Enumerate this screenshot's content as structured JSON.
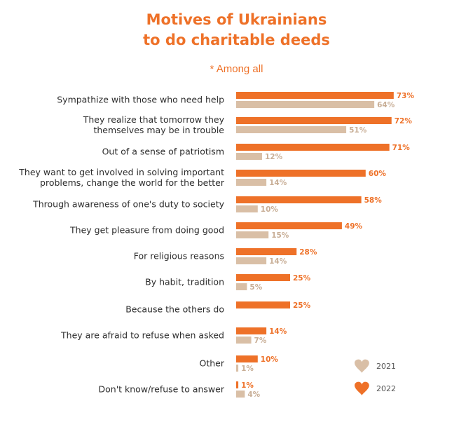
{
  "colors": {
    "y2022": "#ee7128",
    "y2021": "#d9bfa6",
    "label2021": "#c8ae96",
    "text": "#2d2d2d"
  },
  "legend": [
    {
      "label": "2021",
      "icon": "heart-icon",
      "color": "#d9bfa6"
    },
    {
      "label": "2022",
      "icon": "heart-icon",
      "color": "#ee7128"
    }
  ],
  "chart_data": {
    "type": "bar",
    "orientation": "horizontal",
    "title": [
      "Motives of Ukrainians",
      "to do charitable deeds"
    ],
    "subtitle": "* Among all",
    "unit": "%",
    "xlim": [
      0,
      100
    ],
    "grid": false,
    "legend_position": "bottom-right",
    "categories": [
      [
        "Sympathize with those who need help"
      ],
      [
        "They realize that tomorrow they",
        "themselves may be in trouble"
      ],
      [
        "Out of a sense of patriotism"
      ],
      [
        "They want to get involved in solving important",
        "problems, change the world for the better"
      ],
      [
        "Through awareness of one's duty to society"
      ],
      [
        "They get pleasure from doing good"
      ],
      [
        "For religious reasons"
      ],
      [
        "By habit, tradition"
      ],
      [
        "Because the others do"
      ],
      [
        "They are afraid to refuse when asked"
      ],
      [
        "Other"
      ],
      [
        "Don't know/refuse to answer"
      ]
    ],
    "series": [
      {
        "name": "2022",
        "values": [
          73,
          72,
          71,
          60,
          58,
          49,
          28,
          25,
          25,
          14,
          10,
          1
        ]
      },
      {
        "name": "2021",
        "values": [
          64,
          51,
          12,
          14,
          10,
          15,
          14,
          5,
          null,
          7,
          1,
          4
        ]
      }
    ]
  }
}
